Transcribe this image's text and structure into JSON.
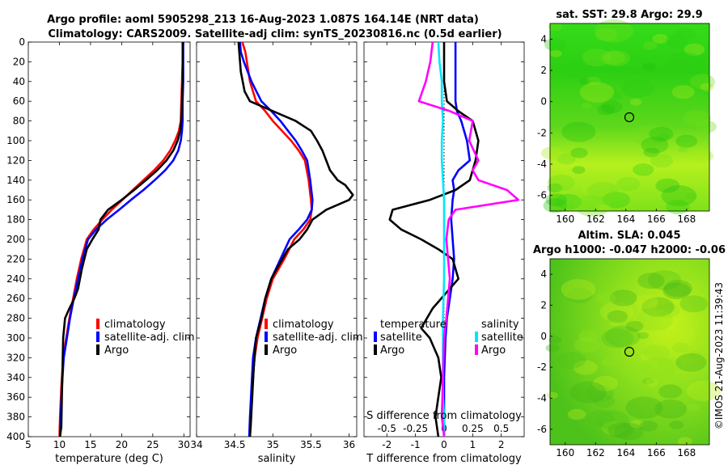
{
  "header": {
    "title_line1": "Argo profile: aoml 5905298_213 16-Aug-2023 1.087S 164.14E (NRT data)",
    "title_line2": "Climatology: CARS2009. Satellite-adj clim: synTS_20230816.nc (0.5d earlier)"
  },
  "colors": {
    "climatology": "#ff0000",
    "satellite": "#0000ff",
    "argo": "#000000",
    "sat_sal": "#00e5ff",
    "argo_sal": "#ff00ff"
  },
  "chart_data": [
    {
      "id": "temperature",
      "type": "line",
      "xlabel": "temperature (deg C)",
      "ylabel": "",
      "xlim": [
        5,
        31
      ],
      "ylim": [
        0,
        400
      ],
      "xticks": [
        "5",
        "10",
        "15",
        "20",
        "25",
        "30"
      ],
      "yticks": [
        "0",
        "20",
        "40",
        "60",
        "80",
        "100",
        "120",
        "140",
        "160",
        "180",
        "200",
        "220",
        "240",
        "260",
        "280",
        "300",
        "320",
        "340",
        "360",
        "380",
        "400"
      ],
      "legend": [
        "climatology",
        "satellite-adj. clim",
        "Argo"
      ],
      "series": [
        {
          "name": "climatology",
          "color": "#ff0000",
          "x": [
            29.8,
            29.8,
            29.7,
            29.6,
            29.5,
            29.2,
            28.6,
            27.8,
            26.7,
            25.2,
            23.5,
            21.8,
            20.1,
            18.4,
            16.9,
            15.5,
            14.4,
            13.5,
            12.8,
            12.2,
            11.6,
            11.1,
            10.6,
            10.3,
            10.1,
            10.0
          ],
          "depth": [
            0,
            20,
            40,
            60,
            80,
            90,
            100,
            110,
            120,
            130,
            140,
            150,
            160,
            170,
            180,
            190,
            200,
            220,
            240,
            260,
            280,
            300,
            320,
            350,
            380,
            400
          ]
        },
        {
          "name": "satellite-adj. clim",
          "color": "#0000ff",
          "x": [
            29.9,
            29.9,
            29.9,
            29.8,
            29.8,
            29.7,
            29.5,
            29.1,
            28.3,
            27.0,
            25.3,
            23.5,
            21.5,
            19.6,
            17.6,
            15.9,
            14.6,
            13.7,
            13.0,
            12.3,
            11.7,
            11.2,
            10.7,
            10.4,
            10.2,
            10.1
          ],
          "depth": [
            0,
            20,
            40,
            60,
            80,
            90,
            100,
            110,
            120,
            130,
            140,
            150,
            160,
            170,
            180,
            190,
            200,
            220,
            240,
            260,
            280,
            300,
            320,
            350,
            380,
            400
          ]
        },
        {
          "name": "Argo",
          "color": "#000000",
          "x": [
            29.8,
            29.8,
            29.8,
            29.7,
            29.6,
            29.4,
            29.0,
            28.3,
            27.2,
            25.7,
            23.9,
            22.0,
            20.0,
            17.8,
            16.6,
            16.3,
            15.3,
            14.4,
            13.6,
            13.0,
            12.4,
            11.6,
            10.9,
            10.6,
            10.5,
            10.4,
            10.3,
            10.1
          ],
          "depth": [
            0,
            20,
            40,
            60,
            80,
            90,
            100,
            110,
            120,
            130,
            140,
            150,
            160,
            170,
            180,
            190,
            200,
            210,
            230,
            250,
            260,
            270,
            280,
            300,
            330,
            360,
            390,
            400
          ]
        }
      ]
    },
    {
      "id": "salinity",
      "type": "line",
      "xlabel": "salinity",
      "ylabel": "",
      "xlim": [
        34,
        36.1
      ],
      "ylim": [
        0,
        400
      ],
      "xticks": [
        "34",
        "34.5",
        "35",
        "35.5",
        "36"
      ],
      "legend": [
        "climatology",
        "satellite-adj. clim",
        "Argo"
      ],
      "series": [
        {
          "name": "climatology",
          "color": "#ff0000",
          "x": [
            34.6,
            34.64,
            34.66,
            34.7,
            34.78,
            34.9,
            35.0,
            35.12,
            35.24,
            35.34,
            35.42,
            35.47,
            35.5,
            35.51,
            35.49,
            35.4,
            35.28,
            35.15,
            35.0,
            34.92,
            34.86,
            34.8,
            34.76,
            34.73,
            34.71,
            34.7
          ],
          "depth": [
            0,
            10,
            20,
            40,
            60,
            70,
            80,
            90,
            100,
            110,
            120,
            140,
            160,
            170,
            180,
            190,
            200,
            220,
            240,
            260,
            280,
            300,
            320,
            350,
            380,
            400
          ]
        },
        {
          "name": "satellite-adj. clim",
          "color": "#0000ff",
          "x": [
            34.57,
            34.58,
            34.62,
            34.72,
            34.85,
            34.98,
            35.1,
            35.2,
            35.3,
            35.38,
            35.45,
            35.49,
            35.52,
            35.51,
            35.45,
            35.34,
            35.22,
            35.1,
            34.98,
            34.9,
            34.84,
            34.78,
            34.74,
            34.72,
            34.7,
            34.69
          ],
          "depth": [
            0,
            10,
            20,
            40,
            60,
            70,
            80,
            90,
            100,
            110,
            120,
            140,
            160,
            170,
            180,
            190,
            200,
            220,
            240,
            260,
            280,
            300,
            320,
            350,
            380,
            400
          ]
        },
        {
          "name": "Argo",
          "color": "#000000",
          "x": [
            34.55,
            34.56,
            34.58,
            34.63,
            34.7,
            35.0,
            35.3,
            35.5,
            35.58,
            35.65,
            35.75,
            35.85,
            35.95,
            36.05,
            36.0,
            35.7,
            35.52,
            35.45,
            35.35,
            35.2,
            35.05,
            34.98,
            34.9,
            34.85,
            34.78,
            34.75,
            34.73,
            34.71,
            34.7
          ],
          "depth": [
            0,
            10,
            30,
            50,
            60,
            70,
            80,
            90,
            100,
            110,
            130,
            140,
            145,
            155,
            160,
            170,
            180,
            190,
            200,
            210,
            230,
            240,
            260,
            280,
            300,
            330,
            360,
            390,
            400
          ]
        }
      ]
    },
    {
      "id": "difference",
      "type": "line",
      "xlabel": "T difference from climatology",
      "xlabel2": "S difference from climatology",
      "xlim": [
        -2.8,
        2.8
      ],
      "xlim2": [
        -0.7,
        0.7
      ],
      "ylim": [
        0,
        400
      ],
      "xticks": [
        "-2",
        "-1",
        "0",
        "1",
        "2"
      ],
      "xticks2": [
        "-0.5",
        "-0.25",
        "0",
        "0.25",
        "0.5"
      ],
      "legend_temperature_title": "temperature",
      "legend_salinity_title": "salinity",
      "legend_satellite": "satellite",
      "legend_argo": "Argo",
      "series": [
        {
          "name": "temperature satellite",
          "color": "#0000ff",
          "axis": "T",
          "x": [
            0.4,
            0.4,
            0.4,
            0.4,
            0.45,
            0.6,
            0.8,
            0.9,
            0.5,
            0.3,
            0.35,
            0.3,
            0.25,
            0.3,
            0.35,
            0.3,
            0.2,
            0.1,
            0.05,
            0.0,
            0.0,
            0.0
          ],
          "depth": [
            0,
            20,
            40,
            60,
            70,
            80,
            100,
            120,
            130,
            140,
            150,
            160,
            180,
            200,
            220,
            240,
            260,
            280,
            300,
            340,
            380,
            400
          ]
        },
        {
          "name": "temperature Argo",
          "color": "#000000",
          "axis": "T",
          "x": [
            0.0,
            0.0,
            0.0,
            0.1,
            0.5,
            1.0,
            1.2,
            1.1,
            0.9,
            0.4,
            -0.5,
            -1.8,
            -1.9,
            -1.5,
            -0.8,
            -0.2,
            0.3,
            0.5,
            0.2,
            -0.4,
            -0.8,
            -0.5,
            -0.2,
            -0.1,
            -0.2,
            -0.3,
            -0.2
          ],
          "depth": [
            0,
            20,
            40,
            60,
            70,
            80,
            100,
            120,
            140,
            150,
            160,
            170,
            180,
            190,
            200,
            210,
            220,
            240,
            250,
            270,
            290,
            300,
            320,
            340,
            360,
            380,
            400
          ]
        },
        {
          "name": "salinity satellite",
          "color": "#00e5ff",
          "axis": "S",
          "x": [
            -0.05,
            -0.04,
            -0.02,
            -0.02,
            -0.01,
            -0.02,
            -0.02,
            -0.01,
            0.0,
            0.0,
            0.0,
            0.0,
            -0.01,
            -0.01,
            -0.01,
            0.0,
            0.0
          ],
          "depth": [
            0,
            20,
            40,
            60,
            80,
            100,
            120,
            140,
            160,
            180,
            200,
            240,
            280,
            320,
            360,
            380,
            400
          ]
        },
        {
          "name": "salinity Argo",
          "color": "#ff00ff",
          "axis": "S",
          "x": [
            -0.1,
            -0.12,
            -0.16,
            -0.22,
            0.05,
            0.25,
            0.22,
            0.3,
            0.25,
            0.3,
            0.55,
            0.65,
            0.1,
            0.04,
            0.02,
            0.05,
            0.02,
            0.0,
            -0.01,
            -0.02,
            0.0
          ],
          "depth": [
            0,
            20,
            40,
            60,
            70,
            80,
            100,
            120,
            130,
            140,
            150,
            160,
            170,
            180,
            200,
            240,
            280,
            300,
            340,
            380,
            400
          ]
        }
      ]
    }
  ],
  "maps": {
    "sst": {
      "title": "sat. SST: 29.8 Argo: 29.9",
      "xticks": [
        "160",
        "162",
        "164",
        "166",
        "168"
      ],
      "yticks": [
        "4",
        "2",
        "0",
        "-2",
        "-4",
        "-6"
      ]
    },
    "sla": {
      "title1": "Altim. SLA: 0.045",
      "title2": "Argo h1000: -0.047 h2000: -0.06",
      "xticks": [
        "160",
        "162",
        "164",
        "166",
        "168"
      ],
      "yticks": [
        "4",
        "2",
        "0",
        "-2",
        "-4",
        "-6"
      ]
    }
  },
  "copyright": "©IMOS 21-Aug-2023 11:39:43"
}
